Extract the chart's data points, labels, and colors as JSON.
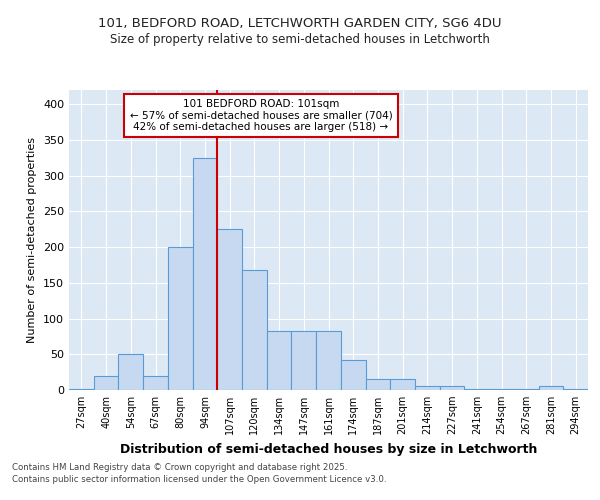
{
  "title1": "101, BEDFORD ROAD, LETCHWORTH GARDEN CITY, SG6 4DU",
  "title2": "Size of property relative to semi-detached houses in Letchworth",
  "xlabel": "Distribution of semi-detached houses by size in Letchworth",
  "ylabel": "Number of semi-detached properties",
  "categories": [
    "27sqm",
    "40sqm",
    "54sqm",
    "67sqm",
    "80sqm",
    "94sqm",
    "107sqm",
    "120sqm",
    "134sqm",
    "147sqm",
    "161sqm",
    "174sqm",
    "187sqm",
    "201sqm",
    "214sqm",
    "227sqm",
    "241sqm",
    "254sqm",
    "267sqm",
    "281sqm",
    "294sqm"
  ],
  "values": [
    2,
    20,
    50,
    20,
    200,
    325,
    225,
    168,
    82,
    82,
    82,
    42,
    15,
    15,
    5,
    5,
    1,
    1,
    1,
    6,
    2
  ],
  "bar_color": "#c6d9f0",
  "bar_edge_color": "#5b9bd5",
  "vline_color": "#cc0000",
  "annotation_title": "101 BEDFORD ROAD: 101sqm",
  "annotation_line1": "← 57% of semi-detached houses are smaller (704)",
  "annotation_line2": "42% of semi-detached houses are larger (518) →",
  "annotation_box_color": "#cc0000",
  "annotation_bg": "#ffffff",
  "footer1": "Contains HM Land Registry data © Crown copyright and database right 2025.",
  "footer2": "Contains public sector information licensed under the Open Government Licence v3.0.",
  "ylim": [
    0,
    420
  ],
  "yticks": [
    0,
    50,
    100,
    150,
    200,
    250,
    300,
    350,
    400
  ],
  "fig_bg_color": "#ffffff",
  "plot_bg_color": "#dce9f5",
  "grid_color": "#ffffff"
}
